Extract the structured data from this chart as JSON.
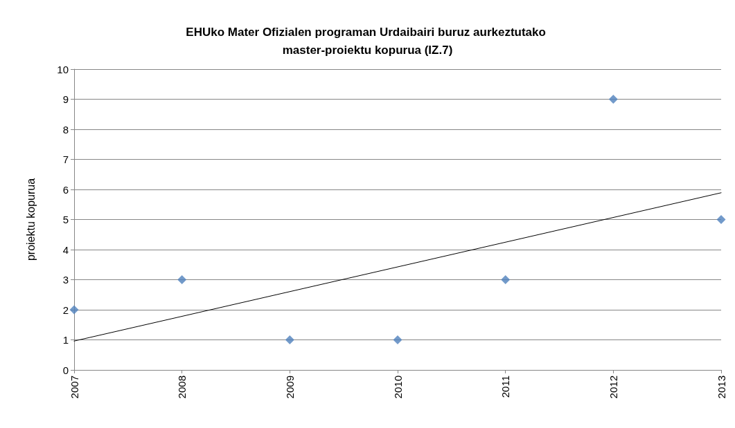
{
  "chart_data": {
    "type": "scatter",
    "title": "EHUko Mater Ofizialen programan Urdaibairi buruz aurkeztutako master-proiektu kopurua (IZ.7)",
    "ylabel": "proiektu kopurua",
    "x": [
      2007,
      2008,
      2009,
      2010,
      2011,
      2012,
      2013
    ],
    "series": [
      {
        "color": "#4f81bd",
        "marker": "diamond",
        "values": [
          2,
          3,
          1,
          1,
          3,
          9,
          5
        ]
      },
      {
        "type": "line",
        "color": "#000000",
        "marker": "none",
        "x": [
          2007,
          2013
        ],
        "values": [
          0.96,
          5.89
        ]
      }
    ],
    "xlim": [
      2007,
      2013
    ],
    "xticks": [
      2007,
      2008,
      2009,
      2010,
      2011,
      2012,
      2013
    ],
    "ylim": [
      0,
      10
    ],
    "yticks": [
      0,
      1,
      2,
      3,
      4,
      5,
      6,
      7,
      8,
      9,
      10
    ],
    "grid": "y"
  }
}
